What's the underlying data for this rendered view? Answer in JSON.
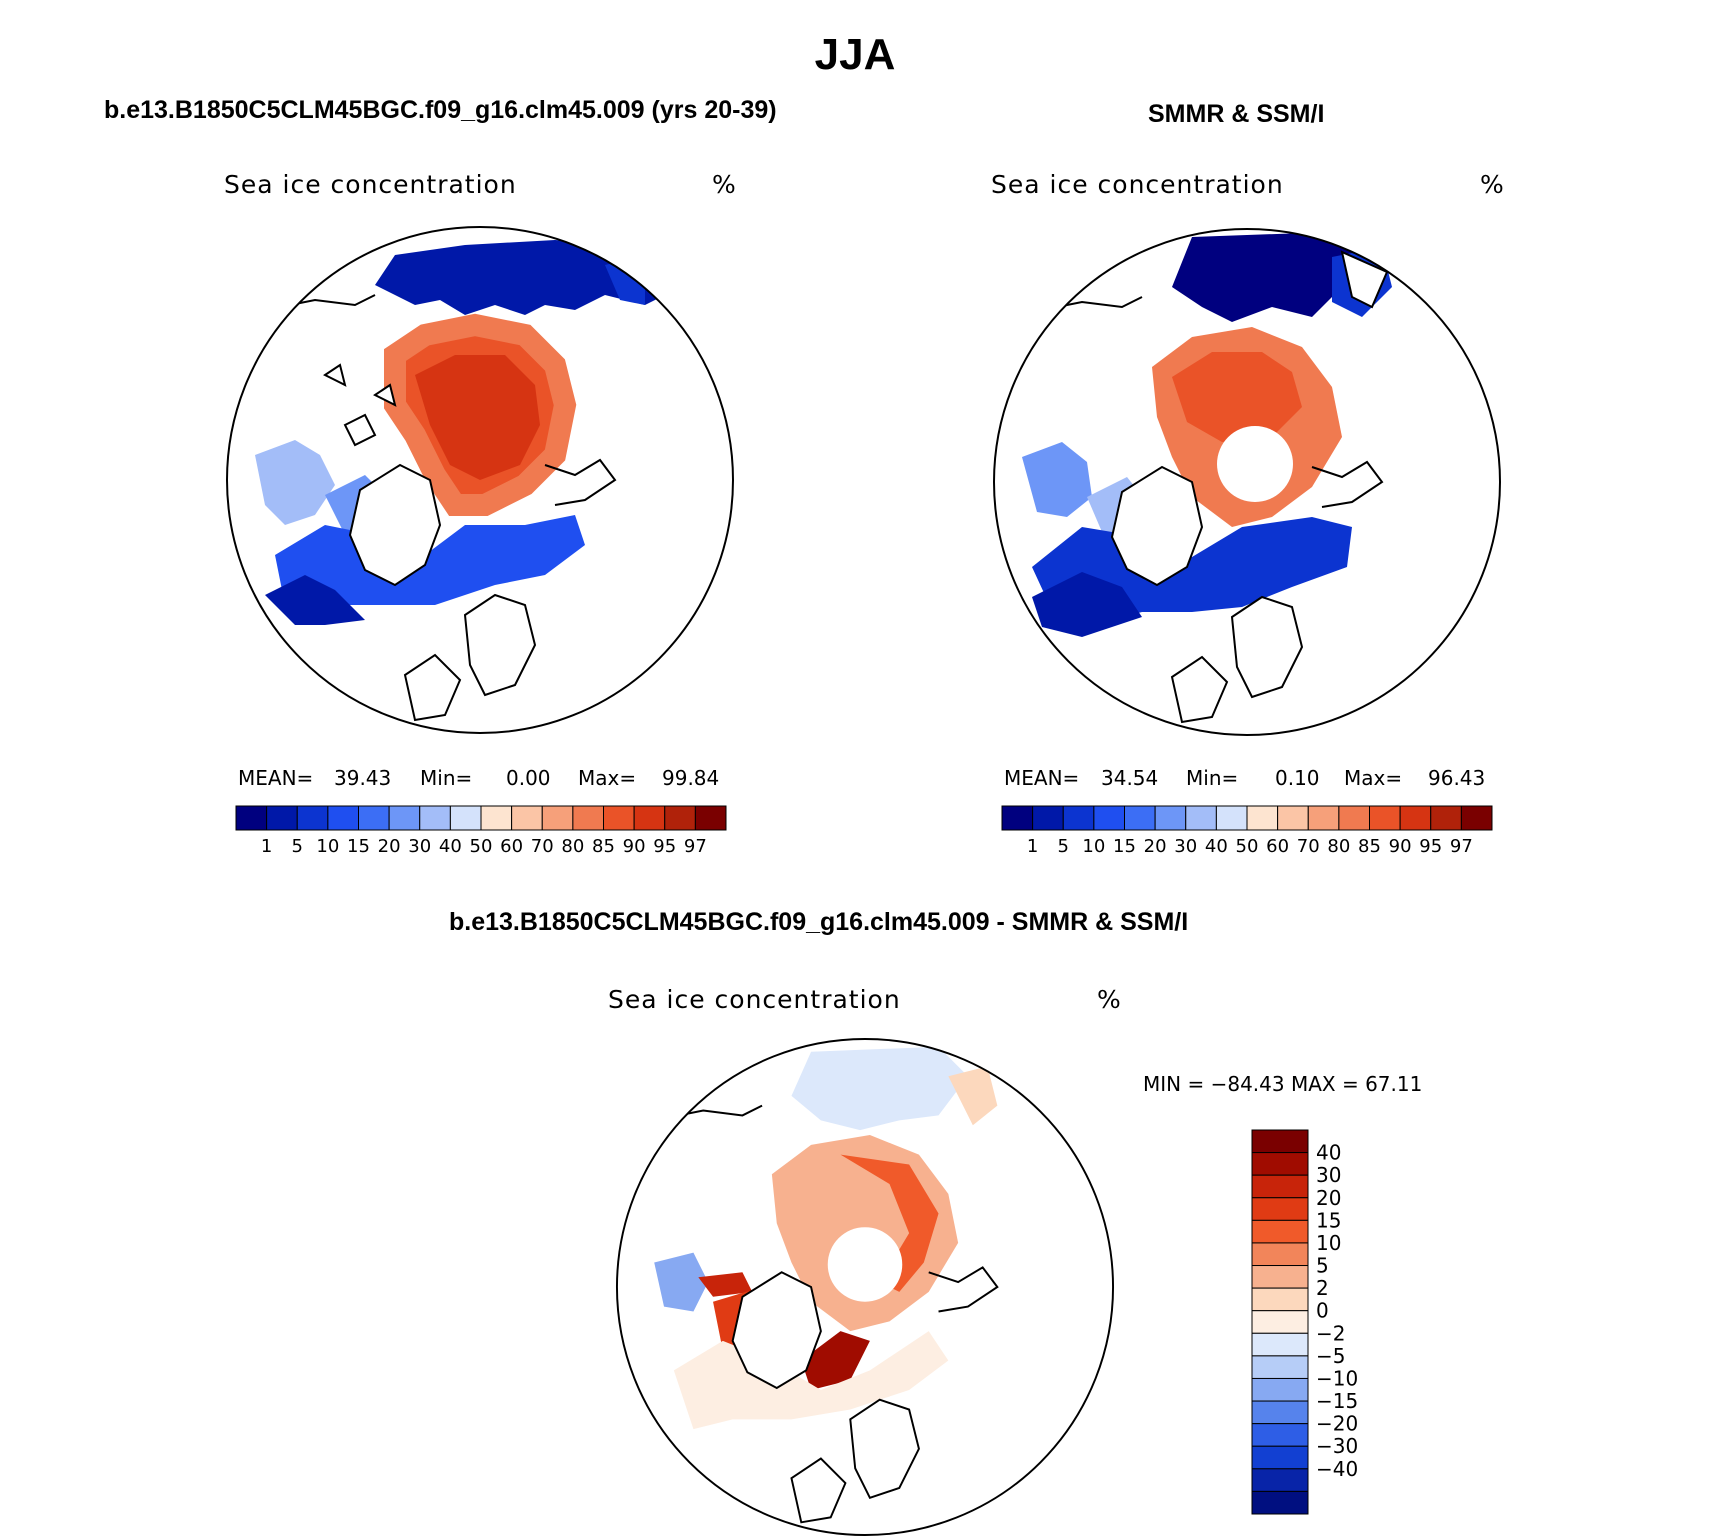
{
  "title": "JJA",
  "colors": {
    "abs_scale": [
      "#00007f",
      "#0018a8",
      "#0c34d0",
      "#1f4ff0",
      "#3c6ef5",
      "#6d96f7",
      "#a3bdf8",
      "#d4e2fb",
      "#fde4d0",
      "#fbc5a6",
      "#f6a07a",
      "#f07a50",
      "#ea5328",
      "#d63412",
      "#b0220a",
      "#7a0000"
    ],
    "diff_scale": [
      "#7a0000",
      "#a00c00",
      "#c8240a",
      "#e03b14",
      "#f05a2a",
      "#f2855a",
      "#f7b18f",
      "#fcd8bd",
      "#fdeee2",
      "#dce8fb",
      "#b6cdf7",
      "#87a9f2",
      "#5683ec",
      "#2e5ee6",
      "#1240d2",
      "#0824a8",
      "#000f80"
    ]
  },
  "panels": [
    {
      "title": "b.e13.B1850C5CLM45BGC.f09_g16.clm45.009 (yrs 20-39)",
      "field": "Sea ice concentration",
      "units": "%",
      "stats": {
        "mean_label": "MEAN=",
        "mean": "39.43",
        "min_label": "Min=",
        "min": "0.00",
        "max_label": "Max=",
        "max": "99.84"
      }
    },
    {
      "title": "SMMR & SSM/I",
      "field": "Sea ice concentration",
      "units": "%",
      "stats": {
        "mean_label": "MEAN=",
        "mean": "34.54",
        "min_label": "Min=",
        "min": "0.10",
        "max_label": "Max=",
        "max": "96.43"
      }
    },
    {
      "title": "b.e13.B1850C5CLM45BGC.f09_g16.clm45.009 - SMMR & SSM/I",
      "field": "Sea ice concentration",
      "units": "%",
      "minmax": "MIN = −84.43 MAX =   67.11"
    }
  ],
  "chart_data": [
    {
      "type": "heatmap",
      "projection": "north-polar-stereographic",
      "title": "b.e13.B1850C5CLM45BGC.f09_g16.clm45.009 (yrs 20-39)",
      "variable": "Sea ice concentration",
      "units": "%",
      "mean": 39.43,
      "min": 0.0,
      "max": 99.84,
      "colorbar_levels": [
        "1",
        "5",
        "10",
        "15",
        "20",
        "30",
        "40",
        "50",
        "60",
        "70",
        "80",
        "85",
        "90",
        "95",
        "97"
      ]
    },
    {
      "type": "heatmap",
      "projection": "north-polar-stereographic",
      "title": "SMMR & SSM/I",
      "variable": "Sea ice concentration",
      "units": "%",
      "mean": 34.54,
      "min": 0.1,
      "max": 96.43,
      "colorbar_levels": [
        "1",
        "5",
        "10",
        "15",
        "20",
        "30",
        "40",
        "50",
        "60",
        "70",
        "80",
        "85",
        "90",
        "95",
        "97"
      ],
      "pole_hole": true
    },
    {
      "type": "heatmap",
      "projection": "north-polar-stereographic",
      "title": "b.e13.B1850C5CLM45BGC.f09_g16.clm45.009 - SMMR & SSM/I",
      "variable": "Sea ice concentration",
      "units": "%",
      "min": -84.43,
      "max": 67.11,
      "colorbar_levels": [
        "40",
        "30",
        "20",
        "15",
        "10",
        "5",
        "2",
        "0",
        "−2",
        "−5",
        "−10",
        "−15",
        "−20",
        "−30",
        "−40"
      ],
      "pole_hole": true
    }
  ]
}
